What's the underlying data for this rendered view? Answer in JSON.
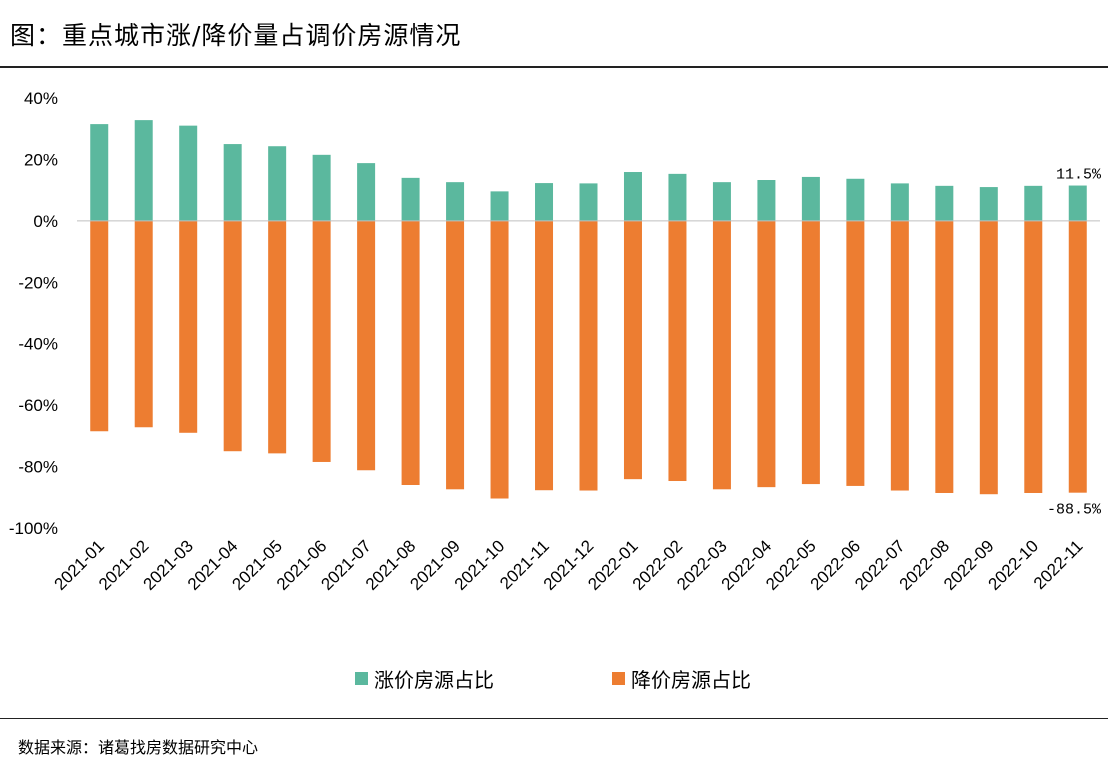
{
  "figure": {
    "title": "图：重点城市涨/降价量占调价房源情况",
    "source": "数据来源：诸葛找房数据研究中心"
  },
  "chart_data": {
    "type": "bar",
    "stacked": true,
    "categories": [
      "2021-01",
      "2021-02",
      "2021-03",
      "2021-04",
      "2021-05",
      "2021-06",
      "2021-07",
      "2021-08",
      "2021-09",
      "2021-10",
      "2021-11",
      "2021-12",
      "2022-01",
      "2022-02",
      "2022-03",
      "2022-04",
      "2022-05",
      "2022-06",
      "2022-07",
      "2022-08",
      "2022-09",
      "2022-10",
      "2022-11"
    ],
    "series": [
      {
        "name": "涨价房源占比",
        "color": "#5BB89E",
        "values": [
          31.5,
          32.8,
          31.0,
          25.0,
          24.3,
          21.5,
          18.8,
          14.0,
          12.6,
          9.6,
          12.3,
          12.2,
          15.9,
          15.3,
          12.6,
          13.3,
          14.3,
          13.7,
          12.2,
          11.4,
          11.0,
          11.4,
          11.5
        ]
      },
      {
        "name": "降价房源占比",
        "color": "#ED7D31",
        "values": [
          -68.5,
          -67.2,
          -69.0,
          -75.0,
          -75.7,
          -78.5,
          -81.2,
          -86.0,
          -87.4,
          -90.4,
          -87.7,
          -87.8,
          -84.1,
          -84.7,
          -87.4,
          -86.7,
          -85.7,
          -86.3,
          -87.8,
          -88.6,
          -89.0,
          -88.6,
          -88.5
        ]
      }
    ],
    "ylim": [
      -100,
      40
    ],
    "yticks": [
      "40%",
      "20%",
      "0%",
      "-20%",
      "-40%",
      "-60%",
      "-80%",
      "-100%"
    ],
    "ytick_values": [
      40,
      20,
      0,
      -20,
      -40,
      -60,
      -80,
      -100
    ],
    "data_labels": {
      "last_positive": "11.5%",
      "last_negative": "-88.5%"
    },
    "xlabel": "",
    "ylabel": "",
    "grid": false,
    "legend_position": "bottom"
  }
}
